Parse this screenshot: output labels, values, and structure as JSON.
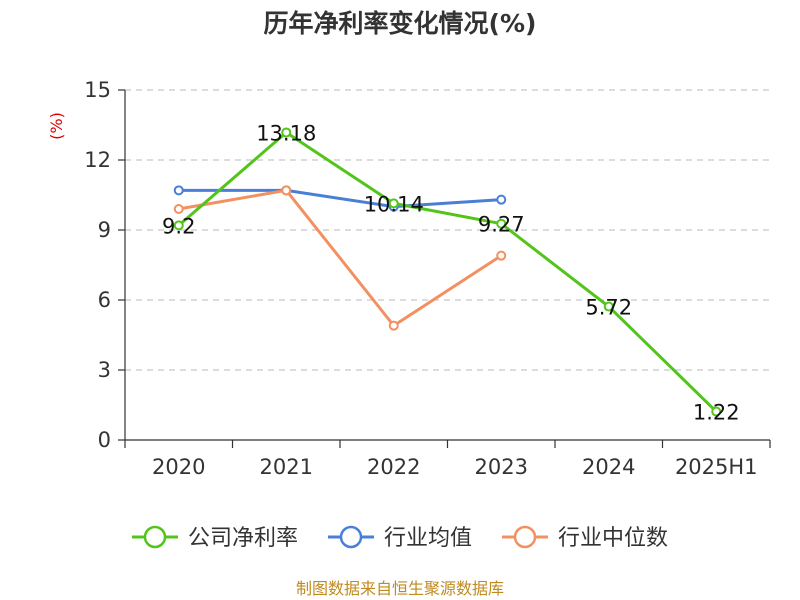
{
  "chart_data": {
    "type": "line",
    "title": "历年净利率变化情况(%)",
    "ylabel": "(%)",
    "xlabel": "",
    "categories": [
      "2020",
      "2021",
      "2022",
      "2023",
      "2024",
      "2025H1"
    ],
    "ylim": [
      0,
      15
    ],
    "yticks": [
      0,
      3,
      6,
      9,
      12,
      15
    ],
    "grid": "horizontal-dashed",
    "legend_position": "bottom-center",
    "series": [
      {
        "name": "公司净利率",
        "color": "#52c41a",
        "values": [
          9.2,
          13.18,
          10.14,
          9.27,
          5.72,
          1.22
        ],
        "labels": [
          "9.2",
          "13.18",
          "10.14",
          "9.27",
          "5.72",
          "1.22"
        ]
      },
      {
        "name": "行业均值",
        "color": "#4a7fd8",
        "values": [
          10.7,
          10.7,
          10.0,
          10.3,
          null,
          null
        ]
      },
      {
        "name": "行业中位数",
        "color": "#f39061",
        "values": [
          9.9,
          10.7,
          4.9,
          7.9,
          null,
          null
        ]
      }
    ]
  },
  "source": "制图数据来自恒生聚源数据库"
}
